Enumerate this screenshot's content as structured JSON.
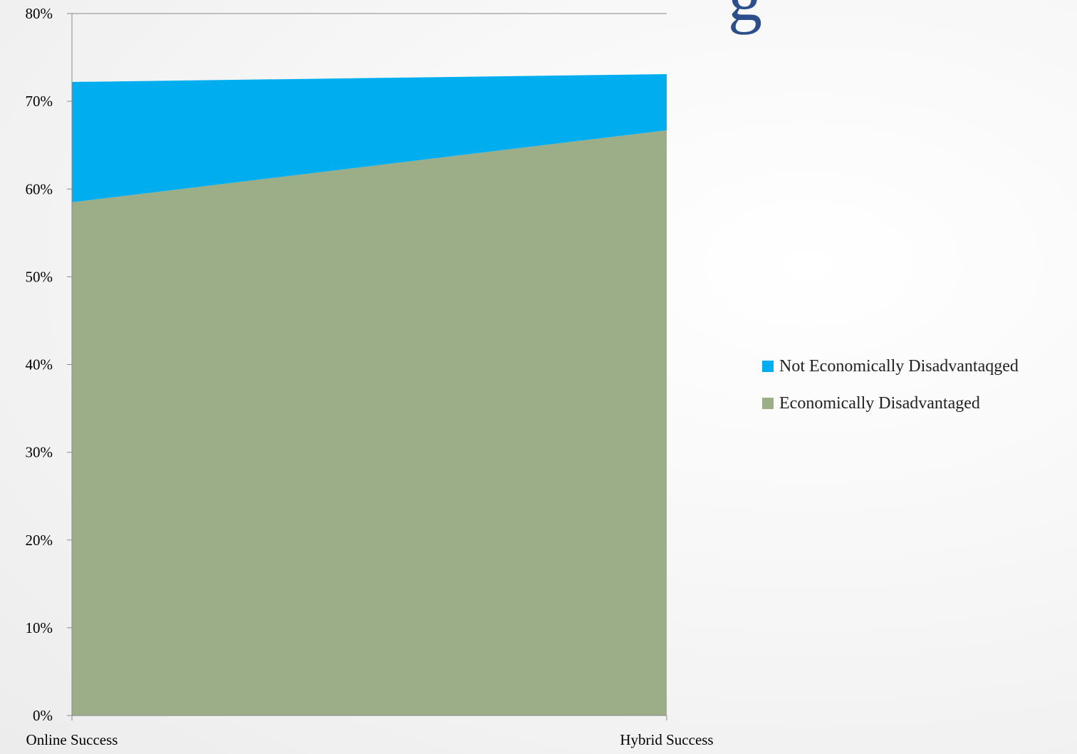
{
  "title_fragment": "g",
  "chart_data": {
    "type": "area",
    "stacked": true,
    "categories": [
      "Online Success",
      "Hybrid Success"
    ],
    "series": [
      {
        "name": "Economically Disadvantaged",
        "values": [
          0.585,
          0.667
        ],
        "color": "#9bae88"
      },
      {
        "name": "Not Economically Disadvantaqged",
        "values": [
          0.137,
          0.064
        ],
        "color": "#00aeef"
      }
    ],
    "ylim": [
      0,
      0.8
    ],
    "yticks": [
      "0%",
      "10%",
      "20%",
      "30%",
      "40%",
      "50%",
      "60%",
      "70%",
      "80%"
    ],
    "legend_position": "right",
    "grid": false
  },
  "legend": [
    {
      "label": "Not Economically Disadvantaqged",
      "color": "#00aeef"
    },
    {
      "label": "Economically Disadvantaged",
      "color": "#9bae88"
    }
  ]
}
